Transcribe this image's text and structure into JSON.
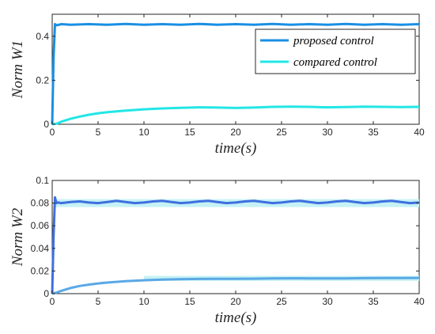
{
  "chart_data": [
    {
      "type": "line",
      "xlabel": "time(s)",
      "ylabel": "Norm W1",
      "xlim": [
        0,
        40
      ],
      "ylim": [
        0,
        0.5
      ],
      "xticks": [
        "0",
        "5",
        "10",
        "15",
        "20",
        "25",
        "30",
        "35",
        "40"
      ],
      "yticks": [
        "0",
        "0.2",
        "0.4"
      ],
      "ytick_values": [
        0,
        0.2,
        0.4
      ],
      "grid": false,
      "legend_position": "top-right",
      "series": [
        {
          "name": "proposed control",
          "color": "#1a8fe3",
          "x": [
            0,
            0.15,
            0.3,
            0.5,
            1,
            2,
            4,
            6,
            8,
            10,
            12,
            14,
            16,
            18,
            20,
            22,
            24,
            26,
            28,
            30,
            32,
            34,
            36,
            38,
            40
          ],
          "y": [
            0,
            0.3,
            0.455,
            0.45,
            0.455,
            0.452,
            0.455,
            0.452,
            0.456,
            0.452,
            0.455,
            0.452,
            0.456,
            0.452,
            0.455,
            0.452,
            0.456,
            0.452,
            0.455,
            0.452,
            0.456,
            0.452,
            0.455,
            0.452,
            0.455
          ]
        },
        {
          "name": "compared control",
          "color": "#22e6e6",
          "x": [
            0,
            0.5,
            1,
            2,
            3,
            4,
            5,
            6,
            8,
            10,
            12,
            14,
            16,
            18,
            20,
            22,
            24,
            26,
            28,
            30,
            32,
            34,
            36,
            38,
            40
          ],
          "y": [
            0,
            0.003,
            0.012,
            0.025,
            0.035,
            0.043,
            0.05,
            0.055,
            0.062,
            0.068,
            0.072,
            0.075,
            0.077,
            0.076,
            0.074,
            0.076,
            0.079,
            0.08,
            0.079,
            0.077,
            0.078,
            0.08,
            0.079,
            0.078,
            0.079
          ]
        }
      ]
    },
    {
      "type": "line",
      "xlabel": "time(s)",
      "ylabel": "Norm W2",
      "xlim": [
        0,
        40
      ],
      "ylim": [
        0,
        0.1
      ],
      "xticks": [
        "0",
        "5",
        "10",
        "15",
        "20",
        "25",
        "30",
        "35",
        "40"
      ],
      "yticks": [
        "0",
        "0.02",
        "0.04",
        "0.06",
        "0.08",
        "0.1"
      ],
      "ytick_values": [
        0,
        0.02,
        0.04,
        0.06,
        0.08,
        0.1
      ],
      "grid": false,
      "series": [
        {
          "color": "#3f6fdf",
          "x": [
            0,
            0.15,
            0.3,
            0.45,
            0.6,
            1,
            2,
            3,
            4,
            5,
            6,
            7,
            8,
            9,
            10,
            11,
            12,
            13,
            14,
            15,
            16,
            17,
            18,
            19,
            20,
            21,
            22,
            23,
            24,
            25,
            26,
            27,
            28,
            29,
            30,
            31,
            32,
            33,
            34,
            35,
            36,
            37,
            38,
            39,
            40
          ],
          "y": [
            0,
            0.05,
            0.085,
            0.08,
            0.0805,
            0.08,
            0.081,
            0.0815,
            0.0805,
            0.08,
            0.081,
            0.082,
            0.081,
            0.08,
            0.0805,
            0.0815,
            0.082,
            0.081,
            0.08,
            0.0805,
            0.0815,
            0.082,
            0.081,
            0.08,
            0.0805,
            0.0815,
            0.082,
            0.081,
            0.08,
            0.0805,
            0.0815,
            0.082,
            0.081,
            0.08,
            0.0805,
            0.0815,
            0.082,
            0.081,
            0.08,
            0.0805,
            0.0815,
            0.082,
            0.081,
            0.08,
            0.0805
          ]
        },
        {
          "color": "#5aa8e6",
          "x": [
            0,
            0.5,
            1,
            2,
            3,
            4,
            5,
            6,
            8,
            10,
            12,
            14,
            16,
            18,
            20,
            22,
            24,
            26,
            28,
            30,
            32,
            34,
            36,
            38,
            40
          ],
          "y": [
            0,
            0.001,
            0.0025,
            0.005,
            0.0068,
            0.008,
            0.009,
            0.0098,
            0.011,
            0.0118,
            0.0124,
            0.0128,
            0.013,
            0.0131,
            0.0131,
            0.0132,
            0.0134,
            0.0136,
            0.0135,
            0.0134,
            0.0135,
            0.0137,
            0.0138,
            0.0138,
            0.0139
          ]
        }
      ],
      "bands": [
        {
          "color": "#c5f2f5",
          "center": 0.08,
          "half_width": 0.0035,
          "x_from": 0.3,
          "x_to": 40
        },
        {
          "color": "#c5f2f5",
          "center": 0.0135,
          "half_width": 0.0022,
          "x_from": 10,
          "x_to": 40
        }
      ]
    }
  ]
}
